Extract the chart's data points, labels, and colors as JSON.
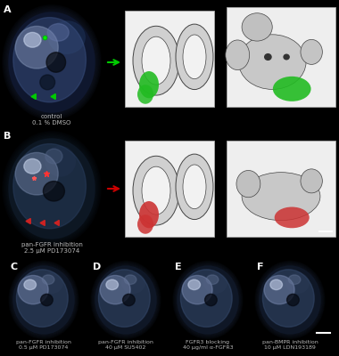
{
  "background_color": "#000000",
  "panel_labels": [
    "A",
    "B",
    "C",
    "D",
    "E",
    "F"
  ],
  "panel_label_color": "#ffffff",
  "panel_label_fontsize": 8,
  "label_A_text": "control\n0.1 % DMSO",
  "label_B_text": "pan-FGFR inhibition\n2.5 μM PD173074",
  "label_C_text": "pan-FGFR inhibition\n0.5 μM PD173074",
  "label_D_text": "pan-FGFR inhibition\n40 μM SU5402",
  "label_E_text": "FGFR3 blocking\n40 μg/ml α-FGFR3",
  "label_F_text": "pan-BMPR inhibition\n10 μM LDN193189",
  "sublabel_fontsize": 5.0,
  "sublabel_color": "#bbbbbb",
  "arrow_A_color": "#00cc00",
  "arrow_B_color": "#cc0000",
  "green_highlight": "#22bb22",
  "red_highlight": "#cc3333",
  "scale_bar_color": "#ffffff"
}
